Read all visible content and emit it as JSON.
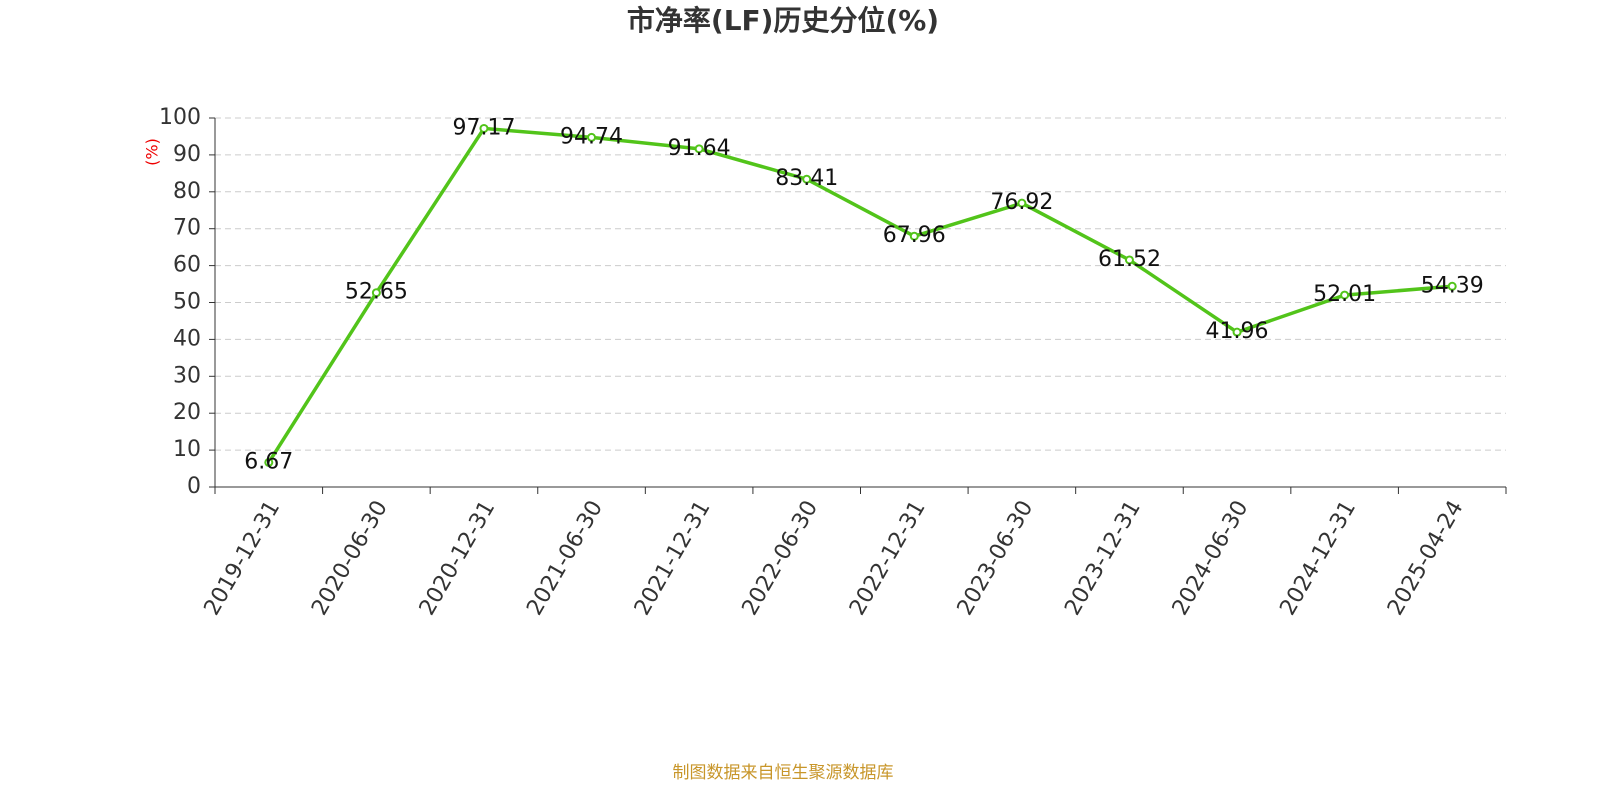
{
  "chart_data": {
    "type": "line",
    "title": "市净率(LF)历史分位(%)",
    "y_label": "(%)",
    "categories": [
      "2019-12-31",
      "2020-06-30",
      "2020-12-31",
      "2021-06-30",
      "2021-12-31",
      "2022-06-30",
      "2022-12-31",
      "2023-06-30",
      "2023-12-31",
      "2024-06-30",
      "2024-12-31",
      "2025-04-24"
    ],
    "values": [
      6.67,
      52.65,
      97.17,
      94.74,
      91.64,
      83.41,
      67.96,
      76.92,
      61.52,
      41.96,
      52.01,
      54.39
    ],
    "color": "#52c41a",
    "ylim": [
      0,
      100
    ],
    "yticks": [
      0,
      10,
      20,
      30,
      40,
      50,
      60,
      70,
      80,
      90,
      100
    ],
    "grid": true,
    "source": "制图数据来自恒生聚源数据库"
  }
}
